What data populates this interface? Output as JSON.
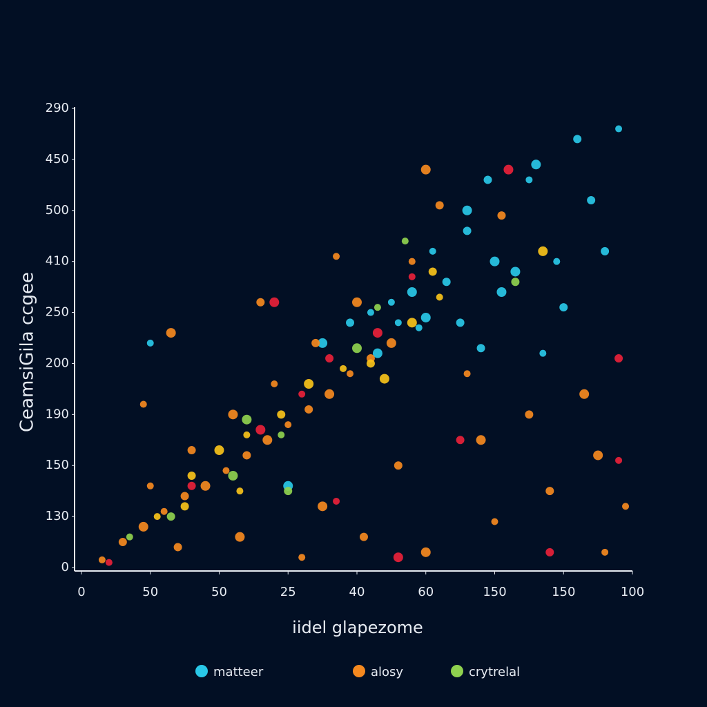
{
  "chart_data": {
    "type": "scatter",
    "y_label": "CeamsiGila ccgee",
    "x_label": "iidel glapezome",
    "xlim": [
      -0.1,
      8
    ],
    "ylim": [
      0,
      9
    ],
    "xticks": [
      0,
      {
        "value": 1,
        "label": "50"
      },
      {
        "value": 2,
        "label": "50"
      },
      {
        "value": 3,
        "label": "25"
      },
      {
        "value": 4,
        "label": "40"
      },
      {
        "value": 5,
        "label": "60"
      },
      {
        "value": 6,
        "label": "150"
      },
      {
        "value": 7,
        "label": "150"
      },
      {
        "value": 8,
        "label": "100"
      }
    ],
    "yticks": [
      0,
      {
        "value": 1,
        "label": "130"
      },
      {
        "value": 2,
        "label": "150"
      },
      {
        "value": 3,
        "label": "190"
      },
      {
        "value": 4,
        "label": "200"
      },
      {
        "value": 5,
        "label": "250"
      },
      {
        "value": 6,
        "label": "410"
      },
      {
        "value": 7,
        "label": "500"
      },
      {
        "value": 8,
        "label": "450"
      },
      {
        "value": 9,
        "label": "290"
      }
    ],
    "series": [
      {
        "name": "matteer",
        "color": "#29c8e8",
        "x": [
          7.8,
          7.2,
          6.6,
          6.5,
          5.9,
          5.6,
          5.1,
          5.6,
          6.0,
          6.9,
          7.4,
          4.8,
          4.5,
          5.3,
          6.3,
          4.9,
          5.5,
          5.0,
          4.2,
          3.9,
          4.3,
          6.7,
          7.0,
          3.5,
          1.0,
          5.8,
          6.1,
          4.6,
          7.6,
          3.0
        ],
        "y": [
          8.6,
          8.4,
          7.9,
          7.6,
          7.6,
          7.0,
          6.2,
          6.6,
          6.0,
          6.0,
          7.2,
          5.4,
          5.2,
          5.6,
          5.8,
          4.7,
          4.8,
          4.9,
          5.0,
          4.8,
          4.2,
          4.2,
          5.1,
          4.4,
          4.4,
          4.3,
          5.4,
          4.8,
          6.2,
          1.6
        ]
      },
      {
        "name": "alosy",
        "color": "#f5891f",
        "x": [
          0.3,
          0.6,
          0.9,
          1.2,
          1.5,
          1.8,
          2.1,
          2.4,
          2.7,
          3.0,
          3.3,
          3.6,
          3.9,
          4.2,
          4.5,
          1.0,
          1.6,
          2.2,
          2.8,
          3.4,
          4.0,
          4.8,
          5.2,
          5.0,
          3.7,
          2.6,
          1.3,
          0.9,
          1.4,
          2.3,
          3.2,
          4.1,
          5.0,
          6.0,
          6.8,
          7.5,
          7.9,
          6.5,
          7.3,
          5.6,
          4.6,
          3.5,
          7.6,
          6.1,
          5.8
        ],
        "y": [
          0.15,
          0.5,
          0.8,
          1.1,
          1.4,
          1.6,
          1.9,
          2.2,
          2.5,
          2.8,
          3.1,
          3.4,
          3.8,
          4.1,
          4.4,
          1.6,
          2.3,
          3.0,
          3.6,
          4.4,
          5.2,
          6.0,
          7.1,
          7.8,
          6.1,
          5.2,
          4.6,
          3.2,
          0.4,
          0.6,
          0.2,
          0.6,
          0.3,
          0.9,
          1.5,
          2.2,
          1.2,
          3.0,
          3.4,
          3.8,
          2.0,
          1.2,
          0.3,
          6.9,
          2.5
        ]
      },
      {
        "name": "crytrelal",
        "color": "#8fd14f",
        "x": [
          0.7,
          1.3,
          2.2,
          2.9,
          3.0,
          4.0,
          4.7,
          6.3,
          2.4,
          4.3
        ],
        "y": [
          0.6,
          1.0,
          1.8,
          2.6,
          1.5,
          4.3,
          6.4,
          5.6,
          2.9,
          5.1
        ]
      },
      {
        "color": "#e8213a",
        "x": [
          0.4,
          1.6,
          2.6,
          3.2,
          3.6,
          4.3,
          4.8,
          5.5,
          6.2,
          7.8,
          7.8,
          2.8,
          3.7,
          6.8,
          4.6
        ],
        "y": [
          0.1,
          1.6,
          2.7,
          3.4,
          4.1,
          4.6,
          5.7,
          2.5,
          7.8,
          2.1,
          4.1,
          5.2,
          1.3,
          0.3,
          0.2
        ]
      },
      {
        "color": "#f7c21a",
        "x": [
          1.1,
          1.6,
          2.0,
          2.4,
          2.9,
          3.3,
          3.8,
          4.2,
          4.8,
          5.2,
          5.1,
          6.7,
          2.3,
          1.5,
          4.4
        ],
        "y": [
          1.0,
          1.8,
          2.3,
          2.6,
          3.0,
          3.6,
          3.9,
          4.0,
          4.8,
          5.3,
          5.8,
          6.2,
          1.5,
          1.2,
          3.7
        ]
      }
    ]
  }
}
